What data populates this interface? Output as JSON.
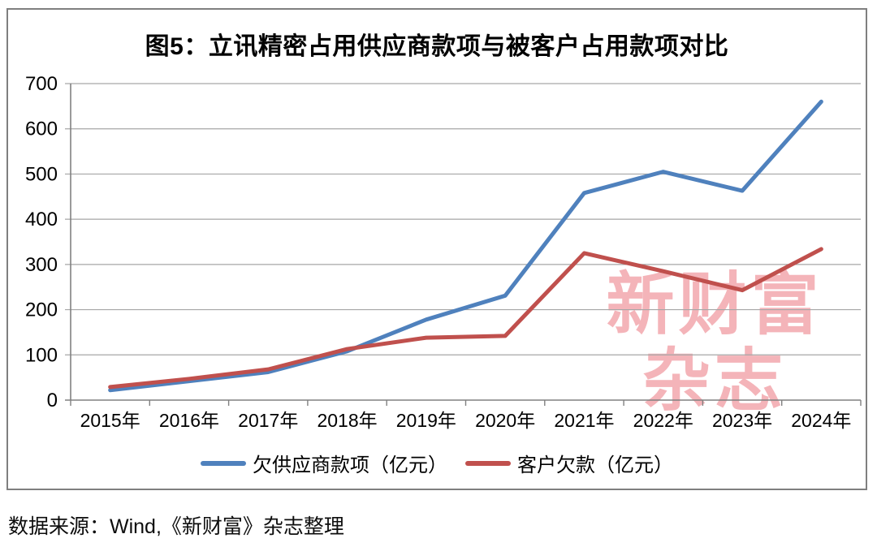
{
  "figure": {
    "title": "图5：立讯精密占用供应商款项与被客户占用款项对比",
    "source": "数据来源：Wind,《新财富》杂志整理",
    "watermark": {
      "line1": "新财富",
      "line2": "杂志",
      "color": "#f4b4b9"
    }
  },
  "chart_data": {
    "type": "line",
    "title": "图5：立讯精密占用供应商款项与被客户占用款项对比",
    "categories": [
      "2015年",
      "2016年",
      "2017年",
      "2018年",
      "2019年",
      "2020年",
      "2021年",
      "2022年",
      "2023年",
      "2024年"
    ],
    "series": [
      {
        "name": "欠供应商款项（亿元）",
        "color": "#4F81BD",
        "values": [
          22,
          42,
          62,
          108,
          178,
          231,
          458,
          505,
          463,
          660
        ]
      },
      {
        "name": "客户欠款（亿元）",
        "color": "#C0504D",
        "values": [
          29,
          47,
          68,
          113,
          138,
          142,
          325,
          285,
          243,
          334
        ]
      }
    ],
    "xlabel": "",
    "ylabel": "",
    "ylim": [
      0,
      700
    ],
    "yticks": [
      0,
      100,
      200,
      300,
      400,
      500,
      600,
      700
    ],
    "grid": true,
    "legend_position": "bottom",
    "gridline_color": "#a6a6a6",
    "axis_color": "#808080",
    "tick_label_color": "#000000"
  }
}
